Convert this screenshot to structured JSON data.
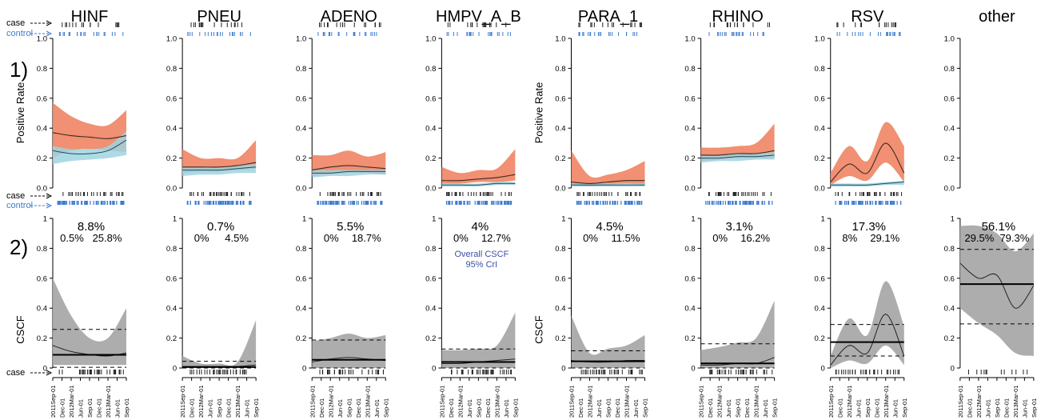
{
  "colors": {
    "case_band": "#f08a6c",
    "control_band": "#9fd3e1",
    "cscf_band": "#a9a9a9",
    "control_rug": "#3f7bd0",
    "case_rug": "#222222",
    "annotation": "#3a4fa8"
  },
  "labels": {
    "row1": "1)",
    "row2": "2)",
    "case_arrow": "case",
    "control_arrow": "control",
    "positive_rate": "Positive Rate",
    "cscf": "CSCF",
    "overall_line1": "Overall CSCF",
    "overall_line2": "95% CrI"
  },
  "date_ticks": [
    "2011Sep-01",
    "Dec-01",
    "2012Mar-01",
    "Jun-01",
    "Sep-01",
    "Dec-01",
    "2013Mar-01",
    "Jun-01",
    "Sep-01"
  ],
  "chart_data": [
    {
      "type": "area",
      "name": "Positive rate over time",
      "x": [
        0,
        0.25,
        0.5,
        0.75,
        1
      ],
      "ylim": [
        0,
        1
      ],
      "yticks": [
        0.0,
        0.2,
        0.4,
        0.6,
        0.8,
        1.0
      ],
      "panels": [
        {
          "pathogen": "HINF",
          "case_mean": [
            0.37,
            0.35,
            0.34,
            0.33,
            0.35
          ],
          "case_lo": [
            0.2,
            0.25,
            0.26,
            0.25,
            0.24
          ],
          "case_hi": [
            0.57,
            0.48,
            0.43,
            0.42,
            0.52
          ],
          "ctrl_mean": [
            0.25,
            0.23,
            0.23,
            0.25,
            0.32
          ],
          "ctrl_lo": [
            0.16,
            0.18,
            0.19,
            0.2,
            0.22
          ],
          "ctrl_hi": [
            0.28,
            0.26,
            0.26,
            0.28,
            0.38
          ]
        },
        {
          "pathogen": "PNEU",
          "case_mean": [
            0.14,
            0.14,
            0.14,
            0.15,
            0.17
          ],
          "case_lo": [
            0.1,
            0.11,
            0.11,
            0.12,
            0.13
          ],
          "case_hi": [
            0.26,
            0.2,
            0.2,
            0.2,
            0.32
          ],
          "ctrl_mean": [
            0.12,
            0.12,
            0.12,
            0.13,
            0.14
          ],
          "ctrl_lo": [
            0.08,
            0.09,
            0.09,
            0.1,
            0.1
          ],
          "ctrl_hi": [
            0.14,
            0.14,
            0.14,
            0.15,
            0.16
          ]
        },
        {
          "pathogen": "ADENO",
          "case_mean": [
            0.12,
            0.14,
            0.15,
            0.14,
            0.13
          ],
          "case_lo": [
            0.08,
            0.09,
            0.1,
            0.1,
            0.09
          ],
          "case_hi": [
            0.22,
            0.22,
            0.25,
            0.21,
            0.24
          ],
          "ctrl_mean": [
            0.1,
            0.1,
            0.11,
            0.11,
            0.11
          ],
          "ctrl_lo": [
            0.07,
            0.08,
            0.08,
            0.09,
            0.09
          ],
          "ctrl_hi": [
            0.12,
            0.12,
            0.12,
            0.12,
            0.12
          ]
        },
        {
          "pathogen": "HMPV_A_B",
          "case_mean": [
            0.05,
            0.05,
            0.06,
            0.07,
            0.09
          ],
          "case_lo": [
            0.03,
            0.03,
            0.04,
            0.04,
            0.05
          ],
          "case_hi": [
            0.14,
            0.1,
            0.12,
            0.13,
            0.26
          ],
          "ctrl_mean": [
            0.02,
            0.02,
            0.02,
            0.03,
            0.03
          ],
          "ctrl_lo": [
            0.01,
            0.01,
            0.01,
            0.02,
            0.02
          ],
          "ctrl_hi": [
            0.03,
            0.03,
            0.03,
            0.04,
            0.04
          ]
        },
        {
          "pathogen": "PARA_1",
          "case_mean": [
            0.04,
            0.03,
            0.04,
            0.05,
            0.05
          ],
          "case_lo": [
            0.02,
            0.01,
            0.02,
            0.03,
            0.02
          ],
          "case_hi": [
            0.25,
            0.08,
            0.09,
            0.12,
            0.18
          ],
          "ctrl_mean": [
            0.02,
            0.02,
            0.02,
            0.02,
            0.02
          ],
          "ctrl_lo": [
            0.01,
            0.01,
            0.01,
            0.01,
            0.01
          ],
          "ctrl_hi": [
            0.03,
            0.03,
            0.03,
            0.03,
            0.03
          ]
        },
        {
          "pathogen": "RHINO",
          "case_mean": [
            0.22,
            0.22,
            0.23,
            0.23,
            0.25
          ],
          "case_lo": [
            0.18,
            0.19,
            0.2,
            0.2,
            0.2
          ],
          "case_hi": [
            0.27,
            0.27,
            0.28,
            0.3,
            0.43
          ],
          "ctrl_mean": [
            0.2,
            0.2,
            0.21,
            0.21,
            0.22
          ],
          "ctrl_lo": [
            0.17,
            0.18,
            0.18,
            0.19,
            0.19
          ],
          "ctrl_hi": [
            0.22,
            0.22,
            0.23,
            0.23,
            0.24
          ]
        },
        {
          "pathogen": "RSV",
          "case_mean": [
            0.04,
            0.16,
            0.1,
            0.3,
            0.1
          ],
          "case_lo": [
            0.02,
            0.08,
            0.05,
            0.17,
            0.04
          ],
          "case_hi": [
            0.1,
            0.28,
            0.18,
            0.44,
            0.28
          ],
          "ctrl_mean": [
            0.02,
            0.02,
            0.02,
            0.03,
            0.04
          ],
          "ctrl_lo": [
            0.01,
            0.01,
            0.01,
            0.02,
            0.02
          ],
          "ctrl_hi": [
            0.03,
            0.03,
            0.03,
            0.04,
            0.05
          ]
        },
        {
          "pathogen": "other",
          "case_mean": null,
          "case_lo": null,
          "case_hi": null,
          "ctrl_mean": null,
          "ctrl_lo": null,
          "ctrl_hi": null
        }
      ]
    },
    {
      "type": "area",
      "name": "CSCF over time",
      "x": [
        0,
        0.25,
        0.5,
        0.75,
        1
      ],
      "ylim": [
        0,
        1
      ],
      "yticks": [
        0.0,
        0.2,
        0.4,
        0.6,
        0.8,
        1.0
      ],
      "panels": [
        {
          "pathogen": "HINF",
          "overall": "8.8%",
          "crl_lo": "0.5%",
          "crl_hi": "25.8%",
          "overall_v": 0.088,
          "lo_v": 0.005,
          "hi_v": 0.258,
          "mean": [
            0.15,
            0.11,
            0.09,
            0.08,
            0.1
          ],
          "lo": [
            0.02,
            0.02,
            0.02,
            0.02,
            0.02
          ],
          "hi": [
            0.6,
            0.35,
            0.2,
            0.2,
            0.4
          ]
        },
        {
          "pathogen": "PNEU",
          "overall": "0.7%",
          "crl_lo": "0%",
          "crl_hi": "4.5%",
          "overall_v": 0.007,
          "lo_v": 0.0,
          "hi_v": 0.045,
          "mean": [
            0.01,
            0.01,
            0.01,
            0.01,
            0.02
          ],
          "lo": [
            0.0,
            0.0,
            0.0,
            0.0,
            0.0
          ],
          "hi": [
            0.08,
            0.03,
            0.03,
            0.04,
            0.32
          ]
        },
        {
          "pathogen": "ADENO",
          "overall": "5.5%",
          "crl_lo": "0%",
          "crl_hi": "18.7%",
          "overall_v": 0.055,
          "lo_v": 0.0,
          "hi_v": 0.187,
          "mean": [
            0.04,
            0.06,
            0.07,
            0.06,
            0.05
          ],
          "lo": [
            0.0,
            0.0,
            0.0,
            0.0,
            0.0
          ],
          "hi": [
            0.18,
            0.2,
            0.23,
            0.2,
            0.22
          ]
        },
        {
          "pathogen": "HMPV_A_B",
          "overall": "4%",
          "crl_lo": "0%",
          "crl_hi": "12.7%",
          "overall_v": 0.04,
          "lo_v": 0.0,
          "hi_v": 0.127,
          "mean": [
            0.03,
            0.03,
            0.04,
            0.05,
            0.06
          ],
          "lo": [
            0.0,
            0.0,
            0.0,
            0.0,
            0.0
          ],
          "hi": [
            0.12,
            0.12,
            0.13,
            0.15,
            0.37
          ]
        },
        {
          "pathogen": "PARA_1",
          "overall": "4.5%",
          "crl_lo": "0%",
          "crl_hi": "11.5%",
          "overall_v": 0.045,
          "lo_v": 0.0,
          "hi_v": 0.115,
          "mean": [
            0.05,
            0.04,
            0.04,
            0.05,
            0.05
          ],
          "lo": [
            0.0,
            0.0,
            0.0,
            0.0,
            0.0
          ],
          "hi": [
            0.35,
            0.1,
            0.13,
            0.15,
            0.22
          ]
        },
        {
          "pathogen": "RHINO",
          "overall": "3.1%",
          "crl_lo": "0%",
          "crl_hi": "16.2%",
          "overall_v": 0.031,
          "lo_v": 0.0,
          "hi_v": 0.162,
          "mean": [
            0.02,
            0.02,
            0.03,
            0.03,
            0.07
          ],
          "lo": [
            0.0,
            0.0,
            0.0,
            0.0,
            0.0
          ],
          "hi": [
            0.12,
            0.14,
            0.17,
            0.2,
            0.45
          ]
        },
        {
          "pathogen": "RSV",
          "overall": "17.3%",
          "crl_lo": "8%",
          "crl_hi": "29.1%",
          "overall_v": 0.173,
          "lo_v": 0.08,
          "hi_v": 0.291,
          "mean": [
            0.02,
            0.15,
            0.1,
            0.36,
            0.08
          ],
          "lo": [
            0.0,
            0.05,
            0.03,
            0.15,
            0.02
          ],
          "hi": [
            0.08,
            0.33,
            0.22,
            0.58,
            0.28
          ]
        },
        {
          "pathogen": "other",
          "overall": "56.1%",
          "crl_lo": "29.5%",
          "crl_hi": "79.3%",
          "overall_v": 0.561,
          "lo_v": 0.295,
          "hi_v": 0.793,
          "mean": [
            0.7,
            0.6,
            0.62,
            0.4,
            0.55
          ],
          "lo": [
            0.4,
            0.3,
            0.22,
            0.1,
            0.08
          ],
          "hi": [
            0.95,
            0.95,
            0.9,
            0.78,
            0.9
          ]
        }
      ]
    }
  ]
}
